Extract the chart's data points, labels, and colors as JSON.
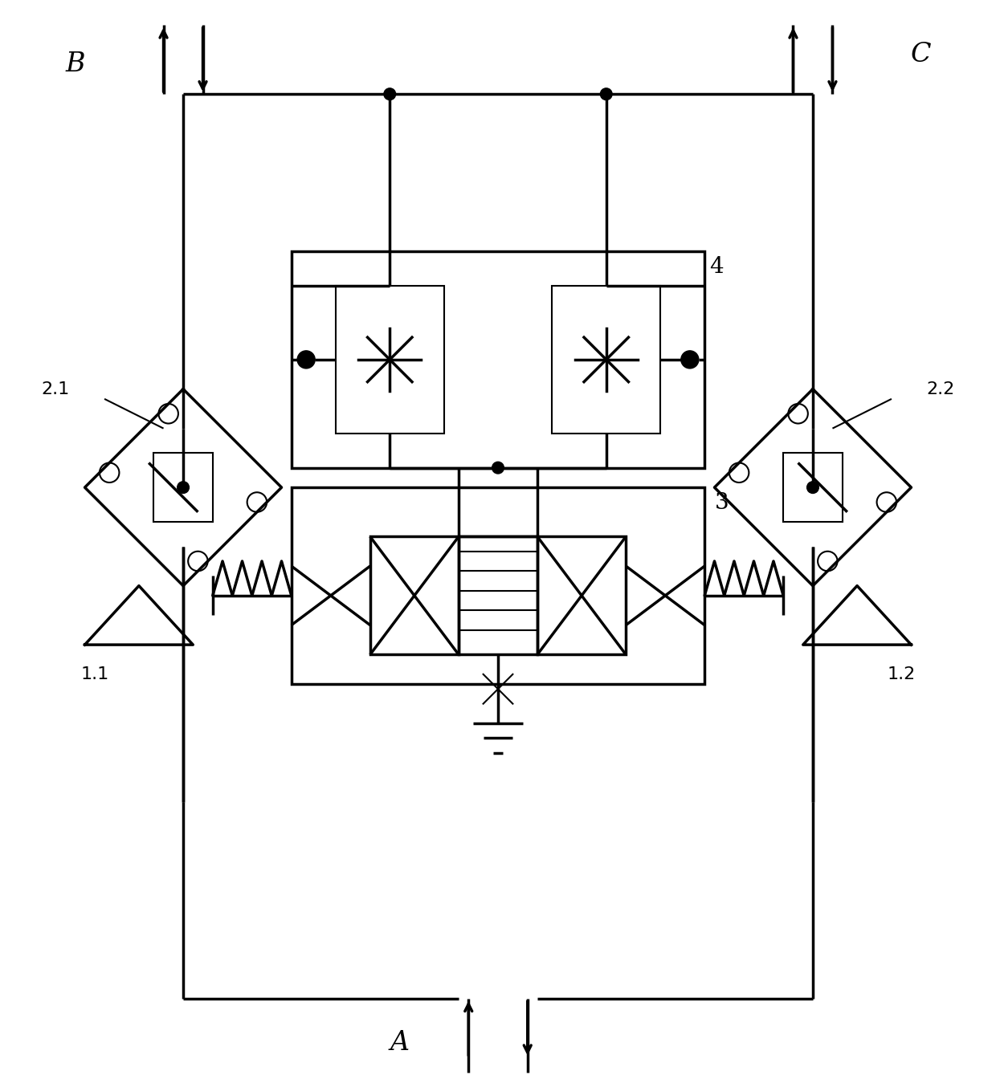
{
  "bg_color": "#ffffff",
  "line_color": "#000000",
  "lw": 2.5,
  "lw_thin": 1.5,
  "fig_width": 12.4,
  "fig_height": 13.49,
  "xlim": [
    0,
    100
  ],
  "ylim": [
    0,
    109
  ],
  "label_B": "B",
  "label_C": "C",
  "label_A": "A",
  "label_21": "2.1",
  "label_22": "2.2",
  "label_11": "1.1",
  "label_12": "1.2",
  "label_3": "3",
  "label_4": "4"
}
